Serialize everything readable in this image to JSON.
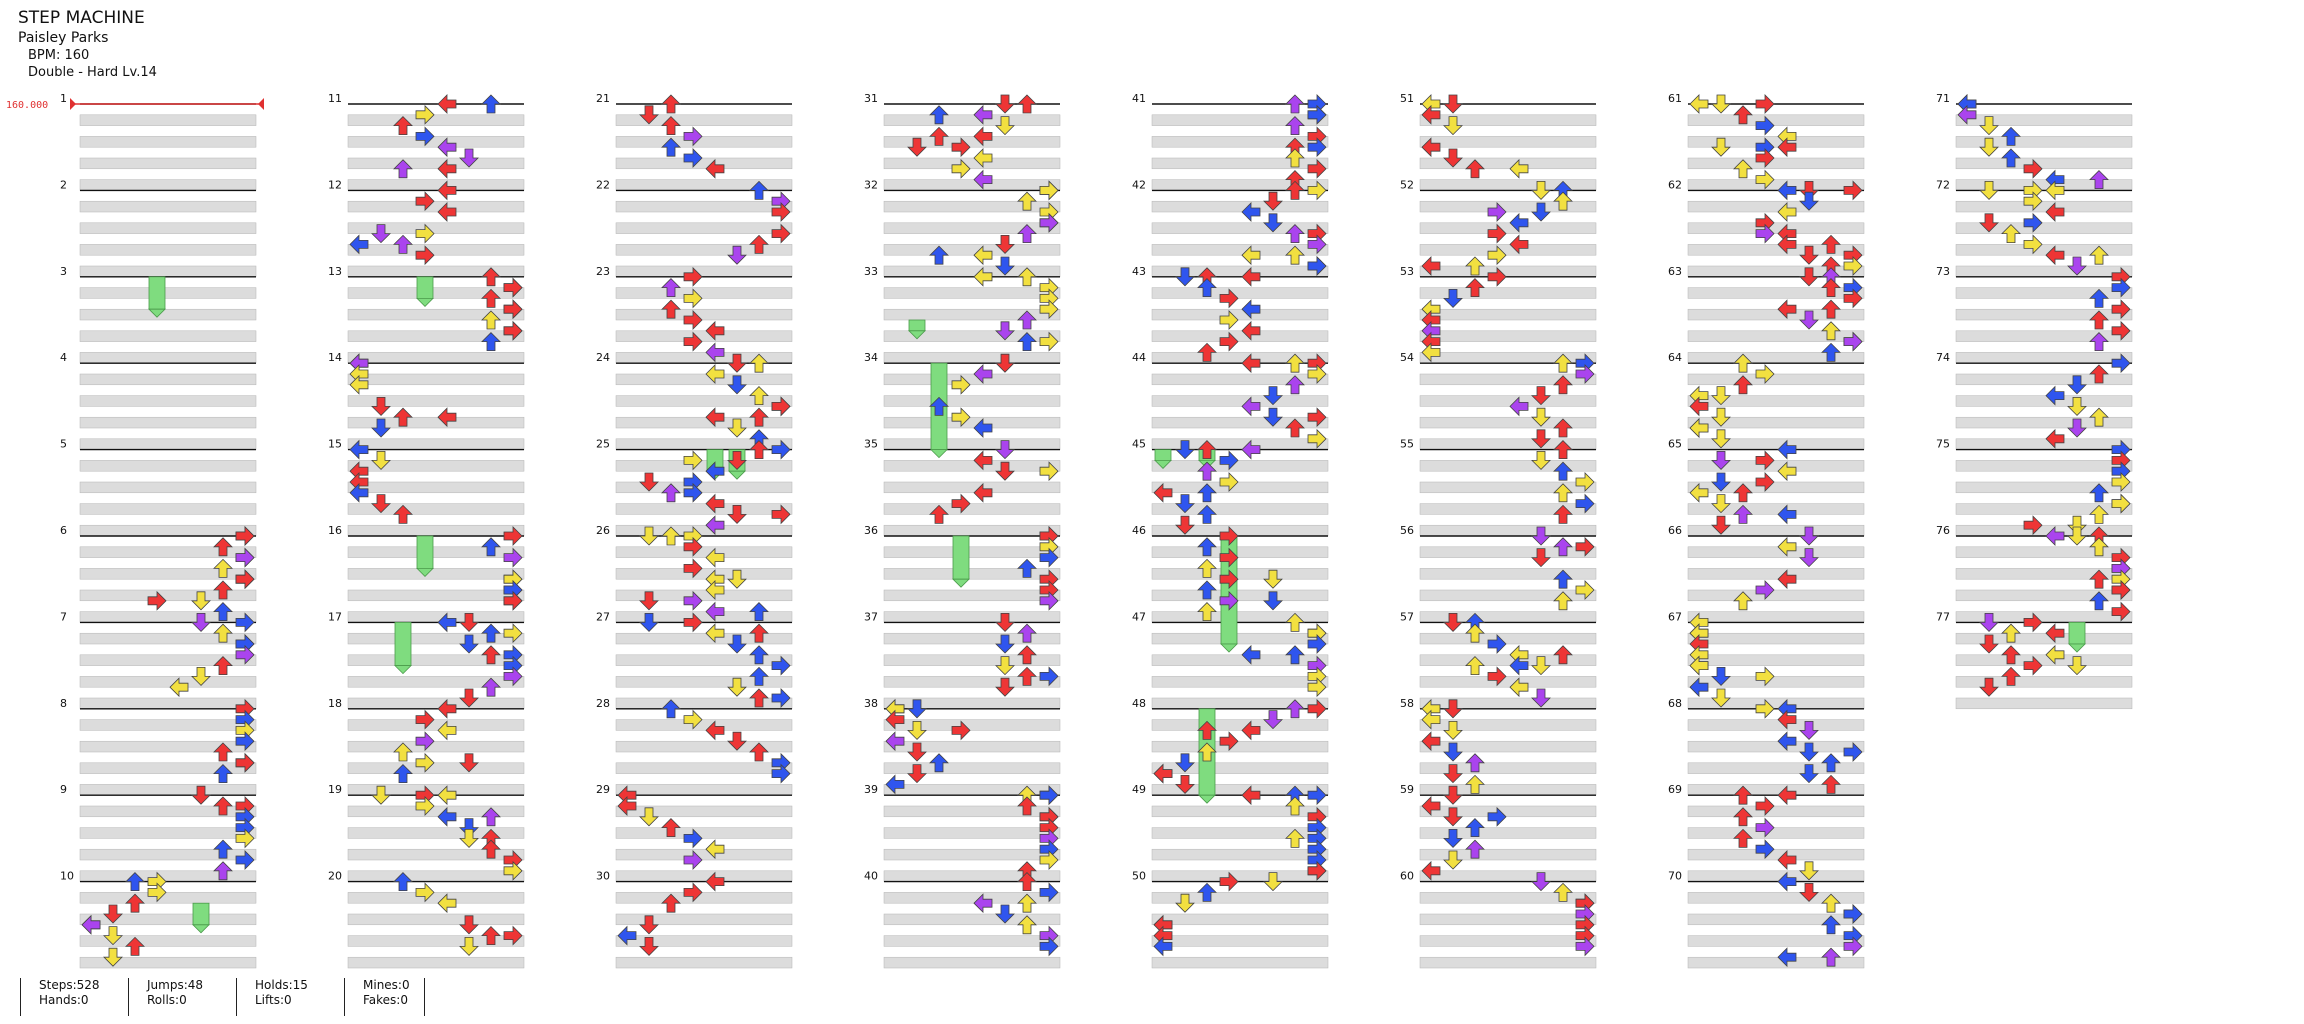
{
  "song": {
    "title": "STEP MACHINE",
    "artist": "Paisley Parks",
    "bpm_label": "BPM: 160",
    "chart_label": "Double - Hard  Lv.14"
  },
  "bpm_marker": {
    "value": "160.000",
    "color": "#e03030"
  },
  "colors": {
    "red": "#ee3535",
    "blue": "#2f55ee",
    "yellow": "#f2e040",
    "purple": "#aa44ee",
    "hold": "#7fdc7f",
    "stripe": "#dcdcdc"
  },
  "measure_labels": [
    "1",
    "2",
    "3",
    "4",
    "5",
    "6",
    "7",
    "8",
    "9",
    "10",
    "11",
    "12",
    "13",
    "14",
    "15",
    "16",
    "17",
    "18",
    "19",
    "20",
    "21",
    "22",
    "23",
    "24",
    "25",
    "26",
    "27",
    "28",
    "29",
    "30",
    "31",
    "32",
    "33",
    "34",
    "35",
    "36",
    "37",
    "38",
    "39",
    "40",
    "41",
    "42",
    "43",
    "44",
    "45",
    "46",
    "47",
    "48",
    "49",
    "50",
    "51",
    "52",
    "53",
    "54",
    "55",
    "56",
    "57",
    "58",
    "59",
    "60",
    "61",
    "62",
    "63",
    "64",
    "65",
    "66",
    "67",
    "68",
    "69",
    "70",
    "71",
    "72",
    "73",
    "74",
    "75",
    "76",
    "77"
  ],
  "stats": [
    {
      "line1": "Steps:528",
      "line2": "Hands:0"
    },
    {
      "line1": "Jumps:48",
      "line2": "Rolls:0"
    },
    {
      "line1": "Holds:15",
      "line2": "Lifts:0"
    },
    {
      "line1": "Mines:0",
      "line2": "Fakes:0"
    }
  ]
}
